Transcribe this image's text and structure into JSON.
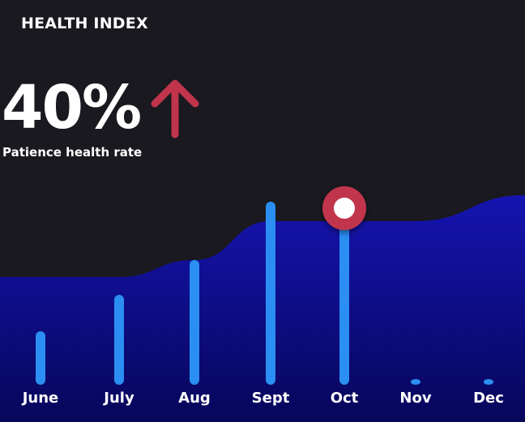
{
  "header": {
    "title": "HEALTH INDEX"
  },
  "kpi": {
    "value": "40%",
    "label": "Patience health rate",
    "trend_icon": "arrow-up-icon"
  },
  "colors": {
    "background": "#19191f",
    "area_top": "#1514b0",
    "area_bottom": "#07065a",
    "bar": "#2b8ef2",
    "accent": "#c0344c",
    "text": "#ffffff"
  },
  "chart_data": {
    "type": "bar",
    "title": "",
    "categories": [
      "June",
      "July",
      "Aug",
      "Sept",
      "Oct",
      "Nov",
      "Dec"
    ],
    "values": [
      62,
      107,
      150,
      222,
      204,
      0,
      0
    ],
    "area_curve": [
      129,
      129,
      150,
      198,
      198,
      198,
      230
    ],
    "highlight_index": 4,
    "ylim": [
      0,
      240
    ],
    "grid": false,
    "legend": "none"
  }
}
